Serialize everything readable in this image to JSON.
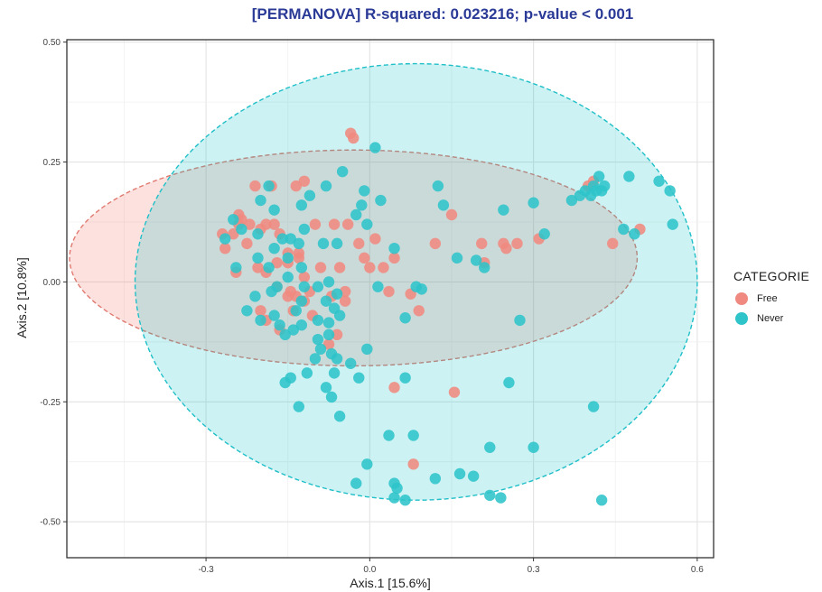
{
  "chart_data": {
    "type": "scatter",
    "title": "[PERMANOVA] R-squared: 0.023216; p-value < 0.001",
    "xlabel": "Axis.1   [15.6%]",
    "ylabel": "Axis.2   [10.8%]",
    "xlim": [
      -0.555,
      0.63
    ],
    "ylim": [
      -0.575,
      0.505
    ],
    "x_ticks": [
      -0.3,
      0.0,
      0.3,
      0.6
    ],
    "x_tick_labels": [
      "-0.3",
      "0.0",
      "0.3",
      "0.6"
    ],
    "y_ticks": [
      -0.5,
      -0.25,
      0.0,
      0.25,
      0.5
    ],
    "y_tick_labels": [
      "-0.50",
      "-0.25",
      "0.00",
      "0.25",
      "0.50"
    ],
    "grid": true,
    "legend": {
      "title": "CATEGORIE",
      "position": "right"
    },
    "series": [
      {
        "name": "Free",
        "color": "#F08A80",
        "ellipse": {
          "cx": -0.03,
          "cy": 0.05,
          "rx": 0.52,
          "ry": 0.225
        },
        "points": [
          [
            -0.21,
            0.2
          ],
          [
            -0.18,
            0.2
          ],
          [
            -0.135,
            0.2
          ],
          [
            -0.12,
            0.21
          ],
          [
            -0.035,
            0.31
          ],
          [
            -0.03,
            0.3
          ],
          [
            -0.265,
            0.07
          ],
          [
            -0.27,
            0.1
          ],
          [
            -0.25,
            0.1
          ],
          [
            -0.24,
            0.14
          ],
          [
            -0.24,
            0.12
          ],
          [
            -0.235,
            0.13
          ],
          [
            -0.225,
            0.08
          ],
          [
            -0.22,
            0.12
          ],
          [
            -0.2,
            0.11
          ],
          [
            -0.19,
            0.12
          ],
          [
            -0.175,
            0.12
          ],
          [
            -0.165,
            0.1
          ],
          [
            -0.15,
            0.06
          ],
          [
            -0.13,
            0.06
          ],
          [
            -0.1,
            0.12
          ],
          [
            -0.065,
            0.12
          ],
          [
            -0.04,
            0.12
          ],
          [
            -0.245,
            0.02
          ],
          [
            -0.205,
            0.03
          ],
          [
            -0.19,
            0.02
          ],
          [
            -0.17,
            0.04
          ],
          [
            -0.15,
            0.04
          ],
          [
            -0.13,
            0.05
          ],
          [
            -0.12,
            0.01
          ],
          [
            -0.09,
            0.03
          ],
          [
            -0.055,
            0.03
          ],
          [
            -0.045,
            -0.02
          ],
          [
            -0.07,
            -0.03
          ],
          [
            -0.11,
            -0.02
          ],
          [
            -0.15,
            -0.03
          ],
          [
            -0.17,
            -0.01
          ],
          [
            -0.135,
            -0.03
          ],
          [
            -0.145,
            -0.02
          ],
          [
            -0.14,
            -0.06
          ],
          [
            -0.12,
            -0.04
          ],
          [
            -0.105,
            -0.07
          ],
          [
            -0.2,
            -0.06
          ],
          [
            -0.19,
            -0.08
          ],
          [
            -0.165,
            -0.1
          ],
          [
            -0.06,
            -0.11
          ],
          [
            -0.02,
            0.08
          ],
          [
            -0.01,
            0.05
          ],
          [
            0.01,
            0.09
          ],
          [
            0.0,
            0.03
          ],
          [
            0.025,
            0.03
          ],
          [
            0.045,
            0.05
          ],
          [
            0.035,
            -0.02
          ],
          [
            0.09,
            -0.06
          ],
          [
            0.075,
            -0.025
          ],
          [
            0.045,
            -0.22
          ],
          [
            0.15,
            0.14
          ],
          [
            0.12,
            0.08
          ],
          [
            0.205,
            0.08
          ],
          [
            0.21,
            0.04
          ],
          [
            0.245,
            0.08
          ],
          [
            0.25,
            0.07
          ],
          [
            0.27,
            0.08
          ],
          [
            0.31,
            0.09
          ],
          [
            0.155,
            -0.23
          ],
          [
            0.08,
            -0.38
          ],
          [
            0.4,
            0.2
          ],
          [
            0.41,
            0.21
          ],
          [
            0.445,
            0.08
          ],
          [
            0.495,
            0.11
          ],
          [
            -0.045,
            -0.04
          ],
          [
            -0.075,
            -0.13
          ]
        ]
      },
      {
        "name": "Never",
        "color": "#2EC4CA",
        "ellipse": {
          "cx": 0.085,
          "cy": 0.0,
          "rx": 0.515,
          "ry": 0.455
        },
        "points": [
          [
            0.01,
            0.28
          ],
          [
            -0.08,
            0.2
          ],
          [
            -0.05,
            0.23
          ],
          [
            -0.11,
            0.18
          ],
          [
            -0.125,
            0.16
          ],
          [
            -0.185,
            0.2
          ],
          [
            -0.2,
            0.17
          ],
          [
            -0.25,
            0.13
          ],
          [
            -0.265,
            0.09
          ],
          [
            -0.235,
            0.11
          ],
          [
            -0.205,
            0.1
          ],
          [
            -0.175,
            0.15
          ],
          [
            -0.16,
            0.09
          ],
          [
            -0.145,
            0.09
          ],
          [
            -0.15,
            0.05
          ],
          [
            -0.175,
            0.07
          ],
          [
            -0.13,
            0.08
          ],
          [
            -0.12,
            0.11
          ],
          [
            -0.085,
            0.08
          ],
          [
            -0.06,
            0.08
          ],
          [
            -0.245,
            0.03
          ],
          [
            -0.205,
            0.05
          ],
          [
            -0.185,
            0.03
          ],
          [
            -0.15,
            0.01
          ],
          [
            -0.125,
            0.03
          ],
          [
            -0.12,
            -0.01
          ],
          [
            -0.17,
            -0.01
          ],
          [
            -0.18,
            -0.02
          ],
          [
            -0.095,
            -0.01
          ],
          [
            -0.075,
            0.0
          ],
          [
            -0.08,
            -0.04
          ],
          [
            -0.06,
            -0.025
          ],
          [
            -0.065,
            -0.055
          ],
          [
            -0.055,
            -0.07
          ],
          [
            -0.075,
            -0.085
          ],
          [
            -0.075,
            -0.11
          ],
          [
            -0.095,
            -0.08
          ],
          [
            -0.125,
            -0.09
          ],
          [
            -0.14,
            -0.1
          ],
          [
            -0.155,
            -0.11
          ],
          [
            -0.165,
            -0.09
          ],
          [
            -0.175,
            -0.07
          ],
          [
            -0.2,
            -0.08
          ],
          [
            -0.225,
            -0.06
          ],
          [
            -0.21,
            -0.03
          ],
          [
            -0.125,
            -0.04
          ],
          [
            -0.135,
            -0.06
          ],
          [
            -0.095,
            -0.12
          ],
          [
            -0.09,
            -0.14
          ],
          [
            -0.07,
            -0.15
          ],
          [
            -0.06,
            -0.16
          ],
          [
            -0.035,
            -0.17
          ],
          [
            -0.005,
            -0.14
          ],
          [
            -0.02,
            -0.2
          ],
          [
            -0.065,
            -0.19
          ],
          [
            -0.1,
            -0.16
          ],
          [
            -0.115,
            -0.19
          ],
          [
            -0.145,
            -0.2
          ],
          [
            -0.155,
            -0.21
          ],
          [
            -0.08,
            -0.22
          ],
          [
            -0.07,
            -0.24
          ],
          [
            -0.13,
            -0.26
          ],
          [
            -0.055,
            -0.28
          ],
          [
            -0.025,
            0.14
          ],
          [
            -0.015,
            0.16
          ],
          [
            -0.01,
            0.19
          ],
          [
            0.02,
            0.17
          ],
          [
            -0.005,
            0.12
          ],
          [
            0.045,
            0.07
          ],
          [
            0.015,
            -0.01
          ],
          [
            0.065,
            -0.075
          ],
          [
            0.085,
            -0.01
          ],
          [
            0.095,
            -0.015
          ],
          [
            0.065,
            -0.2
          ],
          [
            0.125,
            0.2
          ],
          [
            0.135,
            0.16
          ],
          [
            0.16,
            0.05
          ],
          [
            0.195,
            0.045
          ],
          [
            0.21,
            0.03
          ],
          [
            0.245,
            0.15
          ],
          [
            0.3,
            0.165
          ],
          [
            0.32,
            0.1
          ],
          [
            0.275,
            -0.08
          ],
          [
            0.255,
            -0.21
          ],
          [
            0.035,
            -0.32
          ],
          [
            0.08,
            -0.32
          ],
          [
            -0.005,
            -0.38
          ],
          [
            -0.025,
            -0.42
          ],
          [
            0.045,
            -0.42
          ],
          [
            0.05,
            -0.43
          ],
          [
            0.045,
            -0.45
          ],
          [
            0.065,
            -0.455
          ],
          [
            0.12,
            -0.41
          ],
          [
            0.165,
            -0.4
          ],
          [
            0.19,
            -0.405
          ],
          [
            0.22,
            -0.345
          ],
          [
            0.3,
            -0.345
          ],
          [
            0.22,
            -0.445
          ],
          [
            0.24,
            -0.45
          ],
          [
            0.37,
            0.17
          ],
          [
            0.385,
            0.18
          ],
          [
            0.395,
            0.19
          ],
          [
            0.405,
            0.18
          ],
          [
            0.41,
            0.2
          ],
          [
            0.415,
            0.19
          ],
          [
            0.425,
            0.19
          ],
          [
            0.43,
            0.2
          ],
          [
            0.42,
            0.22
          ],
          [
            0.475,
            0.22
          ],
          [
            0.465,
            0.11
          ],
          [
            0.485,
            0.1
          ],
          [
            0.53,
            0.21
          ],
          [
            0.55,
            0.19
          ],
          [
            0.555,
            0.12
          ],
          [
            0.41,
            -0.26
          ],
          [
            0.425,
            -0.455
          ]
        ]
      }
    ]
  }
}
